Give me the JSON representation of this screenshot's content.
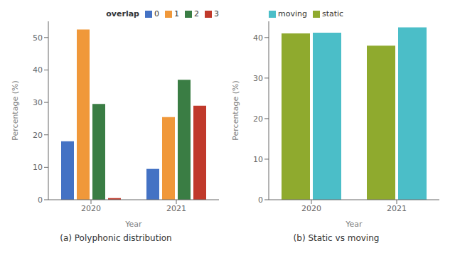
{
  "chart_data": [
    {
      "type": "bar",
      "title": "(a) Polyphonic distribution",
      "xlabel": "Year",
      "ylabel": "Percentage (%)",
      "categories": [
        "2020",
        "2021"
      ],
      "series": [
        {
          "name": "0",
          "color": "#4472c4",
          "values": [
            18.0,
            9.5
          ]
        },
        {
          "name": "1",
          "color": "#f0983a",
          "values": [
            52.5,
            25.5
          ]
        },
        {
          "name": "2",
          "color": "#3a7d44",
          "values": [
            29.5,
            37.0
          ]
        },
        {
          "name": "3",
          "color": "#c0392b",
          "values": [
            0.5,
            29.0
          ]
        }
      ],
      "legend_title": "overlap",
      "legend": "upper right",
      "ylim": [
        0,
        55
      ],
      "yticks": [
        0,
        10,
        20,
        30,
        40,
        50
      ],
      "grid": false
    },
    {
      "type": "bar",
      "title": "(b) Static vs moving",
      "xlabel": "Year",
      "ylabel": "Percentage (%)",
      "categories": [
        "2020",
        "2021"
      ],
      "series": [
        {
          "name": "static",
          "color": "#8faa2e",
          "values": [
            41.0,
            38.0
          ]
        },
        {
          "name": "moving",
          "color": "#4bbec8",
          "values": [
            41.2,
            42.5
          ]
        }
      ],
      "legend": "upper left",
      "ylim": [
        0,
        44
      ],
      "yticks": [
        0,
        10,
        20,
        30,
        40
      ],
      "grid": false
    }
  ]
}
